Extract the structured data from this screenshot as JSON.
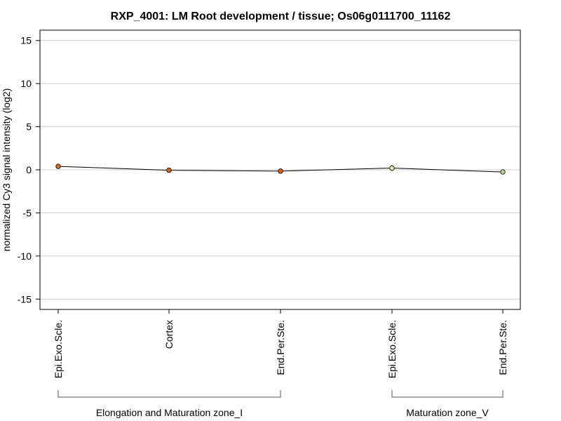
{
  "chart_data": {
    "type": "line",
    "title": "RXP_4001: LM Root development / tissue; Os06g0111700_11162",
    "ylabel": "normalized Cy3 signal intensity (log2)",
    "xlabel": "",
    "ylim": [
      -16.2,
      16.2
    ],
    "yticks": [
      15,
      10,
      5,
      0,
      -5,
      -10,
      -15
    ],
    "ytick_labels": [
      "15",
      "10",
      "5",
      "0",
      "-5",
      "-10",
      "-15"
    ],
    "grid": true,
    "categories": [
      "Epi.Exo.Scle.",
      "Cortex",
      "End.Per.Ste.",
      "Epi.Exo.Scle.",
      "End.Per.Ste."
    ],
    "series": [
      {
        "values": [
          0.4,
          -0.05,
          -0.15,
          0.2,
          -0.25
        ],
        "errors": [
          0.25,
          0.25,
          0.2,
          0.35,
          0.15
        ],
        "colors": [
          "#d2691e",
          "#e0601a",
          "#e0601a",
          "#dcebb4",
          "#b8d08c"
        ]
      }
    ],
    "groups": [
      {
        "label": "Elongation and Maturation zone_I",
        "start": 0,
        "end": 2
      },
      {
        "label": "Maturation zone_V",
        "start": 3,
        "end": 4
      }
    ]
  },
  "colors": {
    "grid": "#cccccc",
    "axis": "#000000",
    "line": "#000000"
  }
}
